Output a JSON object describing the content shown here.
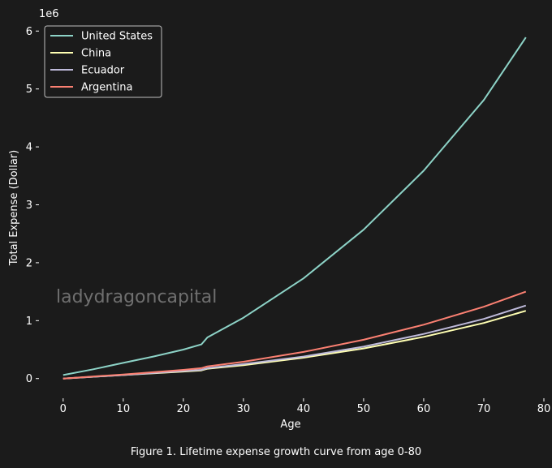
{
  "chart_data": {
    "type": "line",
    "xlabel": "Age",
    "ylabel": "Total Expense (Dollar)",
    "y_offset_label": "1e6",
    "xlim": [
      -2,
      80
    ],
    "ylim": [
      -0.2,
      6.2
    ],
    "y_multiplier": 1000000,
    "xticks": [
      0,
      10,
      20,
      30,
      40,
      50,
      60,
      70,
      80
    ],
    "yticks": [
      0,
      1,
      2,
      3,
      4,
      5,
      6
    ],
    "grid": false,
    "legend_position": "top-left",
    "watermark": "ladydragoncapital",
    "series": [
      {
        "name": "United States",
        "color": "#8dd3c7",
        "x": [
          0,
          5,
          10,
          15,
          20,
          23,
          24,
          30,
          40,
          50,
          60,
          70,
          77
        ],
        "y": [
          0.06,
          0.16,
          0.27,
          0.38,
          0.5,
          0.59,
          0.71,
          1.05,
          1.73,
          2.57,
          3.59,
          4.81,
          5.89
        ]
      },
      {
        "name": "China",
        "color": "#ffffb3",
        "x": [
          0,
          10,
          20,
          23,
          24,
          30,
          40,
          50,
          60,
          70,
          77
        ],
        "y": [
          0.0,
          0.06,
          0.12,
          0.14,
          0.17,
          0.23,
          0.36,
          0.52,
          0.72,
          0.96,
          1.17
        ]
      },
      {
        "name": "Ecuador",
        "color": "#bebada",
        "x": [
          0,
          10,
          20,
          23,
          24,
          30,
          40,
          50,
          60,
          70,
          77
        ],
        "y": [
          0.0,
          0.06,
          0.13,
          0.15,
          0.18,
          0.25,
          0.38,
          0.55,
          0.77,
          1.03,
          1.26
        ]
      },
      {
        "name": "Argentina",
        "color": "#fb8072",
        "x": [
          0,
          10,
          20,
          23,
          24,
          30,
          40,
          50,
          60,
          70,
          77
        ],
        "y": [
          0.0,
          0.07,
          0.15,
          0.18,
          0.21,
          0.29,
          0.46,
          0.67,
          0.93,
          1.24,
          1.5
        ]
      }
    ]
  },
  "caption": "Figure 1. Lifetime expense growth curve from age 0-80"
}
